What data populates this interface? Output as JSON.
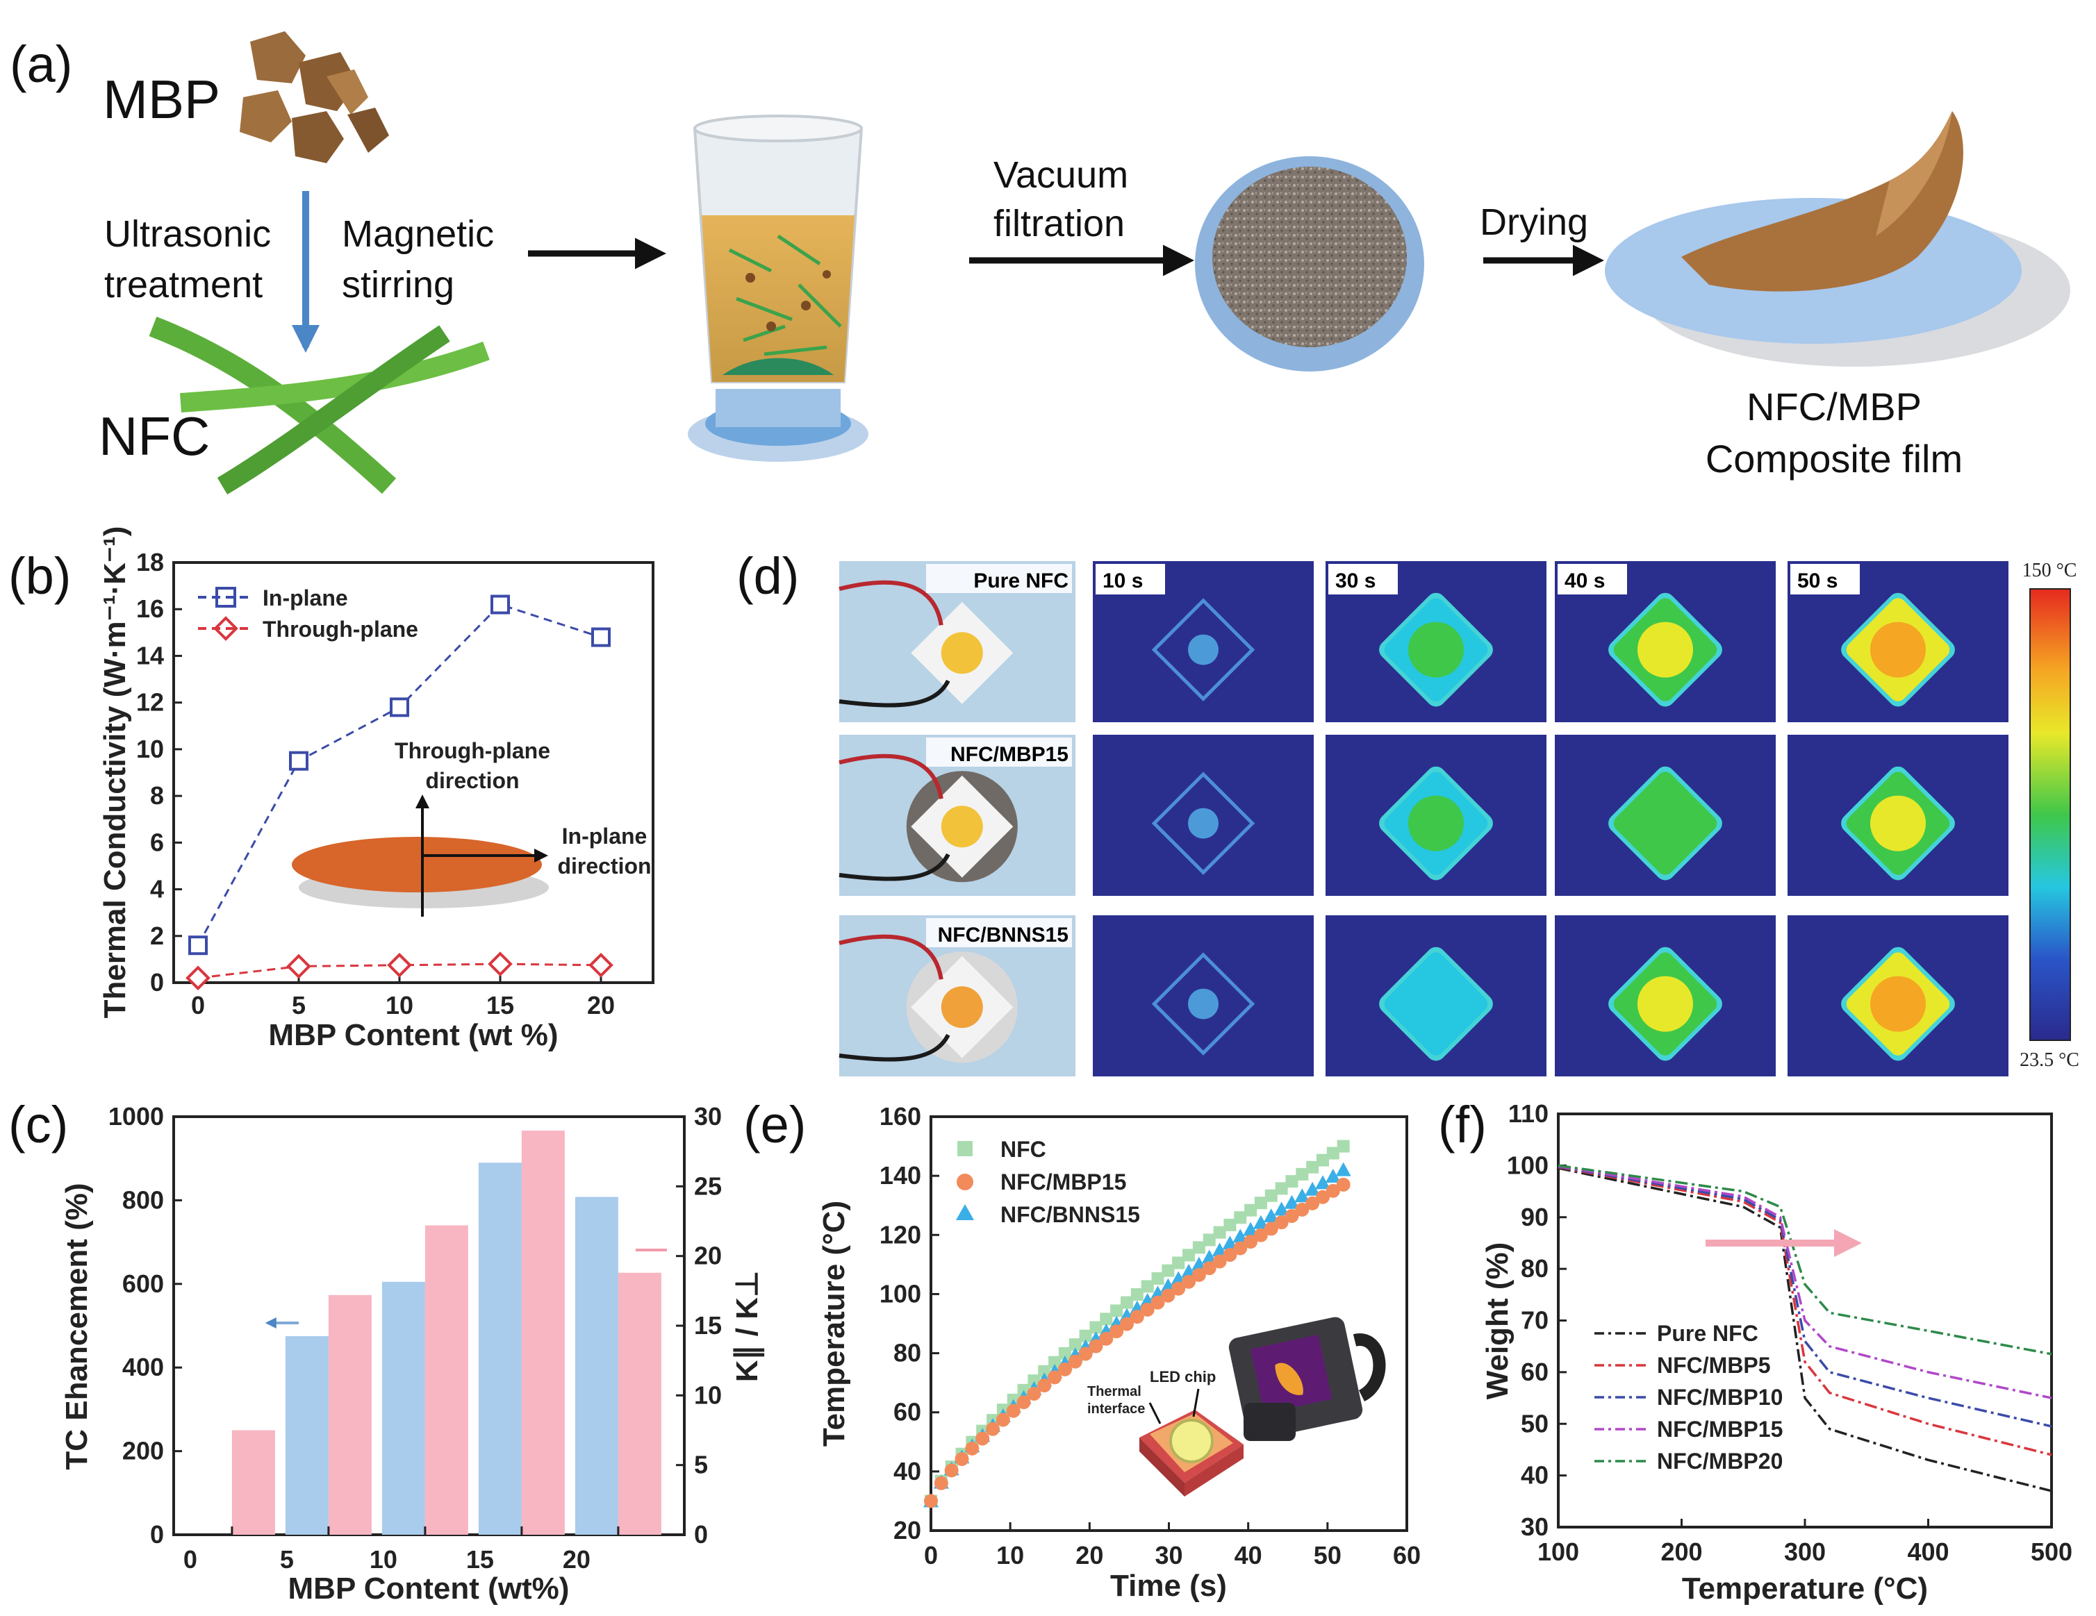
{
  "panel_a": {
    "label": "(a)",
    "mbp": "MBP",
    "nfc": "NFC",
    "ultrasonic": [
      "Ultrasonic",
      "treatment"
    ],
    "magnetic": [
      "Magnetic",
      "stirring"
    ],
    "vacuum": [
      "Vacuum",
      "filtration"
    ],
    "drying": "Drying",
    "film": [
      "NFC/MBP",
      "Composite film"
    ]
  },
  "panel_d": {
    "label": "(d)",
    "rows": [
      "Pure NFC",
      "NFC/MBP15",
      "NFC/BNNS15"
    ],
    "times": [
      "10 s",
      "30 s",
      "40 s",
      "50 s"
    ],
    "scale_max": "150 °C",
    "scale_min": "23.5 °C",
    "scale_colors": [
      "#e62a1f",
      "#f5a623",
      "#e8e82a",
      "#3fc74a",
      "#26c7e0",
      "#2a55c8",
      "#2a2a8c"
    ],
    "levels": [
      [
        0.1,
        0.45,
        0.65,
        0.85
      ],
      [
        0.08,
        0.42,
        0.55,
        0.65
      ],
      [
        0.1,
        0.4,
        0.6,
        0.8
      ]
    ]
  },
  "panel_e_inset": {
    "thermal_interface": [
      "Thermal",
      "interface"
    ],
    "led_chip": "LED chip"
  },
  "chart_data": [
    {
      "id": "b",
      "panel_label": "(b)",
      "type": "line",
      "x": [
        0,
        5,
        10,
        15,
        20
      ],
      "series": [
        {
          "name": "In-plane",
          "values": [
            1.6,
            9.5,
            11.8,
            16.2,
            14.8
          ],
          "color": "#3b4ba8",
          "marker": "square"
        },
        {
          "name": "Through-plane",
          "values": [
            0.2,
            0.7,
            0.75,
            0.8,
            0.75
          ],
          "color": "#d9363e",
          "marker": "diamond"
        }
      ],
      "xlabel": "MBP Content (wt %)",
      "ylabel": "Thermal Conductivity (W·m⁻¹·K⁻¹)",
      "xticks": [
        "0",
        "5",
        "10",
        "15",
        "20"
      ],
      "yticks": [
        "0",
        "2",
        "4",
        "6",
        "8",
        "10",
        "12",
        "14",
        "16",
        "18"
      ],
      "ylim": [
        0,
        18
      ],
      "legend": "top-left",
      "inset_labels": {
        "through": [
          "Through-plane",
          "direction"
        ],
        "inplane": [
          "In-plane",
          "direction"
        ]
      }
    },
    {
      "id": "c",
      "panel_label": "(c)",
      "type": "bar",
      "categories": [
        "0",
        "5",
        "10",
        "15",
        "20"
      ],
      "series": [
        {
          "name": "TC Ehancement",
          "values": [
            0,
            475,
            605,
            890,
            808
          ],
          "color": "#a9cbec",
          "axis": "left"
        },
        {
          "name": "K∥ / K⊥",
          "values": [
            7.5,
            17.2,
            22.2,
            29.0,
            18.8
          ],
          "color": "#f7b6c2",
          "axis": "right"
        }
      ],
      "xlabel": "MBP Content (wt%)",
      "ylabel": "TC Ehancement (%)",
      "ylabel_right": "K∥ / K⊥",
      "yticks": [
        "0",
        "200",
        "400",
        "600",
        "800",
        "1000"
      ],
      "yticks_right": [
        "0",
        "5",
        "10",
        "15",
        "20",
        "25",
        "30"
      ],
      "ylim": [
        0,
        1000
      ],
      "ylim_right": [
        0,
        30
      ]
    },
    {
      "id": "e",
      "panel_label": "(e)",
      "type": "scatter",
      "series": [
        {
          "name": "NFC",
          "color": "#a8dcae",
          "marker": "square",
          "end": 150
        },
        {
          "name": "NFC/MBP15",
          "color": "#f28b5b",
          "marker": "circle",
          "end": 137
        },
        {
          "name": "NFC/BNNS15",
          "color": "#3aaee6",
          "marker": "triangle",
          "end": 142
        }
      ],
      "x_range": [
        0,
        52
      ],
      "start_value": 30,
      "xlabel": "Time (s)",
      "ylabel": "Temperature (°C)",
      "xticks": [
        "0",
        "10",
        "20",
        "30",
        "40",
        "50",
        "60"
      ],
      "yticks": [
        "20",
        "40",
        "60",
        "80",
        "100",
        "120",
        "140",
        "160"
      ],
      "xlim": [
        0,
        60
      ],
      "ylim": [
        20,
        160
      ]
    },
    {
      "id": "f",
      "panel_label": "(f)",
      "type": "line",
      "series": [
        {
          "name": "Pure NFC",
          "color": "#222222",
          "x": [
            100,
            250,
            280,
            300,
            320,
            400,
            500
          ],
          "values": [
            99.5,
            92,
            88,
            55,
            49,
            43,
            37
          ]
        },
        {
          "name": "NFC/MBP5",
          "color": "#d9363e",
          "x": [
            100,
            250,
            280,
            300,
            320,
            400,
            500
          ],
          "values": [
            99.7,
            93,
            89,
            62,
            56,
            50,
            44
          ]
        },
        {
          "name": "NFC/MBP10",
          "color": "#3b4ba8",
          "x": [
            100,
            250,
            280,
            300,
            320,
            400,
            500
          ],
          "values": [
            99.8,
            93.5,
            89.5,
            66,
            60,
            55,
            49.5
          ]
        },
        {
          "name": "NFC/MBP15",
          "color": "#b048c8",
          "x": [
            100,
            250,
            280,
            300,
            320,
            400,
            500
          ],
          "values": [
            99.9,
            94,
            90,
            70,
            65,
            60,
            55
          ]
        },
        {
          "name": "NFC/MBP20",
          "color": "#2d8a4a",
          "x": [
            100,
            250,
            280,
            300,
            320,
            400,
            500
          ],
          "values": [
            100,
            95,
            92,
            77,
            71.5,
            68,
            63.5
          ]
        }
      ],
      "xlabel": "Temperature (°C)",
      "ylabel": "Weight (%)",
      "xticks": [
        "100",
        "200",
        "300",
        "400",
        "500"
      ],
      "yticks": [
        "30",
        "40",
        "50",
        "60",
        "70",
        "80",
        "90",
        "100",
        "110"
      ],
      "xlim": [
        100,
        500
      ],
      "ylim": [
        30,
        110
      ]
    }
  ]
}
